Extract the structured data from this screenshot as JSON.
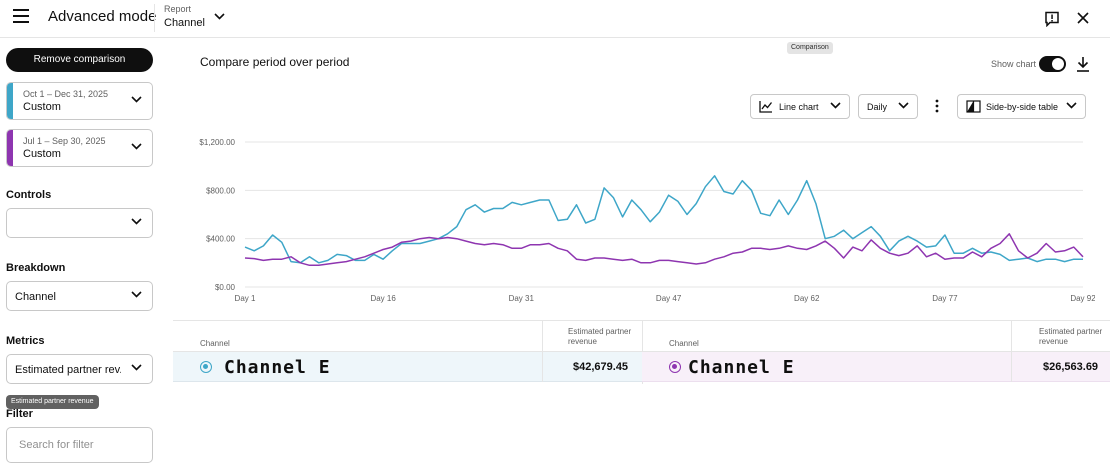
{
  "header": {
    "title": "Advanced mode",
    "report_label": "Report",
    "report_value": "Channel"
  },
  "sidebar": {
    "remove_comparison_label": "Remove comparison",
    "periods": [
      {
        "range": "Oct 1 – Dec 31, 2025",
        "type": "Custom",
        "color": "#3ea6c8"
      },
      {
        "range": "Jul 1 – Sep 30, 2025",
        "type": "Custom",
        "color": "#8e35b0"
      }
    ],
    "controls_label": "Controls",
    "controls_value": "",
    "breakdown_label": "Breakdown",
    "breakdown_value": "Channel",
    "metrics_label": "Metrics",
    "metrics_value": "Estimated partner rev...",
    "metrics_tooltip": "Estimated partner revenue",
    "filter_label": "Filter",
    "filter_placeholder": "Search for filter"
  },
  "main": {
    "title": "Compare period over period",
    "show_chart_label": "Show chart",
    "show_chart_on": true,
    "chart_type_label": "Line chart",
    "interval_label": "Daily",
    "table_mode_label": "Side-by-side table"
  },
  "chart_data": {
    "type": "line",
    "x_tick_labels": [
      "Day 1",
      "Day 16",
      "Day 31",
      "Day 47",
      "Day 62",
      "Day 77",
      "Day 92"
    ],
    "x_tick_days": [
      1,
      16,
      31,
      47,
      62,
      77,
      92
    ],
    "y_tick_labels": [
      "$0.00",
      "$400.00",
      "$800.00",
      "$1,200.00"
    ],
    "ylim": [
      0,
      1200
    ],
    "xlim": [
      1,
      92
    ],
    "grid": true,
    "series": [
      {
        "color": "#3ea6c8",
        "values": [
          330,
          300,
          340,
          430,
          370,
          210,
          200,
          250,
          200,
          220,
          270,
          260,
          220,
          220,
          270,
          230,
          300,
          360,
          360,
          360,
          380,
          400,
          440,
          500,
          640,
          680,
          620,
          650,
          650,
          700,
          680,
          700,
          720,
          720,
          550,
          560,
          680,
          530,
          560,
          820,
          740,
          580,
          720,
          640,
          540,
          620,
          760,
          710,
          600,
          690,
          830,
          920,
          790,
          770,
          880,
          800,
          610,
          590,
          720,
          600,
          720,
          880,
          690,
          400,
          420,
          470,
          400,
          450,
          500,
          420,
          300,
          380,
          420,
          380,
          330,
          340,
          430,
          280,
          280,
          320,
          280,
          290,
          270,
          220,
          230,
          240,
          210,
          230,
          230,
          210,
          230,
          230
        ]
      },
      {
        "color": "#8e35b0",
        "values": [
          240,
          235,
          220,
          230,
          230,
          250,
          200,
          180,
          180,
          190,
          200,
          210,
          230,
          250,
          280,
          310,
          330,
          370,
          380,
          400,
          410,
          400,
          410,
          400,
          380,
          360,
          350,
          360,
          350,
          320,
          320,
          350,
          350,
          360,
          320,
          300,
          230,
          220,
          240,
          240,
          230,
          220,
          230,
          200,
          200,
          220,
          220,
          210,
          200,
          190,
          200,
          230,
          250,
          280,
          290,
          320,
          320,
          310,
          320,
          340,
          320,
          310,
          340,
          380,
          320,
          240,
          330,
          300,
          390,
          320,
          280,
          260,
          280,
          340,
          250,
          280,
          230,
          240,
          240,
          290,
          250,
          320,
          360,
          440,
          300,
          240,
          280,
          360,
          290,
          300,
          330,
          250
        ]
      }
    ]
  },
  "table": {
    "left": {
      "col_channel": "Channel",
      "col_revenue": "Estimated partner revenue",
      "channel": "Channel E",
      "revenue": "$42,679.45"
    },
    "right": {
      "col_channel": "Channel",
      "col_revenue": "Estimated partner revenue",
      "channel": "Channel E",
      "badge": "Comparison",
      "revenue": "$26,563.69"
    }
  }
}
